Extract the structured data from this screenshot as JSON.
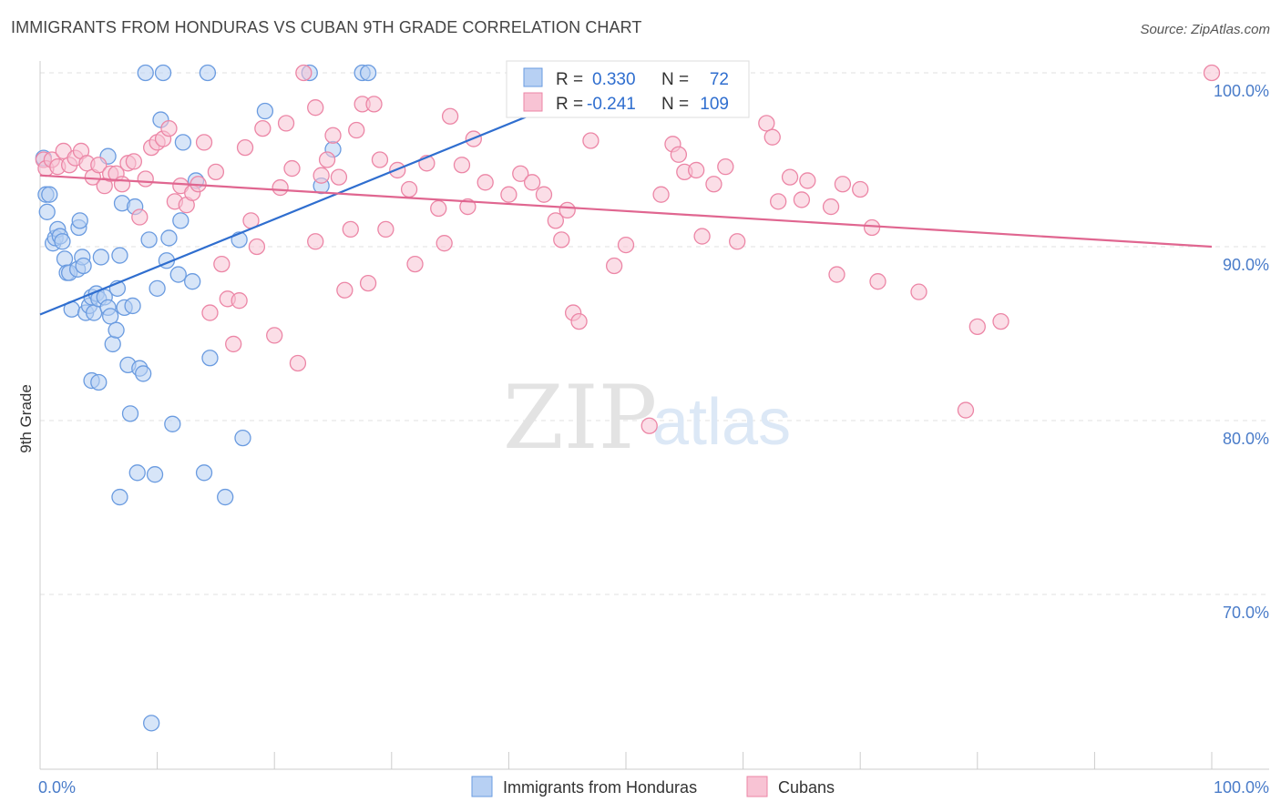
{
  "title": "IMMIGRANTS FROM HONDURAS VS CUBAN 9TH GRADE CORRELATION CHART",
  "source": "Source: ZipAtlas.com",
  "watermark": {
    "zip": "ZIP",
    "atlas": "atlas"
  },
  "colors": {
    "blue": "#6a9be0",
    "blue_fill": "#b7d0f3",
    "blue_line": "#2f6ecf",
    "pink": "#ec86a6",
    "pink_fill": "#f8c3d4",
    "pink_line": "#e06690",
    "tick_text": "#4a7cc9"
  },
  "stats": {
    "r_label": "R =",
    "n_label": "N =",
    "blue": {
      "r": "0.330",
      "n": "72"
    },
    "pink": {
      "r": "-0.241",
      "n": "109"
    }
  },
  "legend": {
    "blue_label": "Immigrants from Honduras",
    "pink_label": "Cubans"
  },
  "chart_data": {
    "type": "scatter",
    "title": "IMMIGRANTS FROM HONDURAS VS CUBAN 9TH GRADE CORRELATION CHART",
    "xlabel": "",
    "ylabel": "9th Grade",
    "xlim": [
      0,
      100
    ],
    "ylim": [
      59.5,
      101.5
    ],
    "x_ticks": [
      0,
      10,
      20,
      30,
      40,
      50,
      60,
      70,
      80,
      90,
      100
    ],
    "x_tick_labels": {
      "0": "0.0%",
      "100": "100.0%"
    },
    "y_ticks": [
      100,
      90,
      80,
      70
    ],
    "y_tick_labels": [
      "100.0%",
      "90.0%",
      "80.0%",
      "70.0%"
    ],
    "grid": true,
    "legend_position": "bottom",
    "series": [
      {
        "name": "Immigrants from Honduras",
        "color": "#6a9be0",
        "trend": [
          [
            0,
            86.1
          ],
          [
            50,
            99.8
          ]
        ],
        "points": [
          [
            0.3,
            95.1
          ],
          [
            0.5,
            93.0
          ],
          [
            0.6,
            92.0
          ],
          [
            0.8,
            93.0
          ],
          [
            1.1,
            90.2
          ],
          [
            1.3,
            90.5
          ],
          [
            1.5,
            91.0
          ],
          [
            1.7,
            90.6
          ],
          [
            1.9,
            90.3
          ],
          [
            2.1,
            89.3
          ],
          [
            2.3,
            88.5
          ],
          [
            2.5,
            88.5
          ],
          [
            2.7,
            86.4
          ],
          [
            3.2,
            88.7
          ],
          [
            3.3,
            91.1
          ],
          [
            3.4,
            91.5
          ],
          [
            3.6,
            89.4
          ],
          [
            3.7,
            88.9
          ],
          [
            3.9,
            86.2
          ],
          [
            4.2,
            86.6
          ],
          [
            4.4,
            87.1
          ],
          [
            4.6,
            86.2
          ],
          [
            4.8,
            87.3
          ],
          [
            5.0,
            87.0
          ],
          [
            5.2,
            89.4
          ],
          [
            5.5,
            87.1
          ],
          [
            5.8,
            86.5
          ],
          [
            6.0,
            86.0
          ],
          [
            6.2,
            84.4
          ],
          [
            6.5,
            85.2
          ],
          [
            6.6,
            87.6
          ],
          [
            6.8,
            89.5
          ],
          [
            7.0,
            92.5
          ],
          [
            7.2,
            86.5
          ],
          [
            7.5,
            83.2
          ],
          [
            7.7,
            80.4
          ],
          [
            7.9,
            86.6
          ],
          [
            8.1,
            92.3
          ],
          [
            8.3,
            77.0
          ],
          [
            8.5,
            83.0
          ],
          [
            8.8,
            82.7
          ],
          [
            9.0,
            100.0
          ],
          [
            9.3,
            90.4
          ],
          [
            9.5,
            62.6
          ],
          [
            9.8,
            76.9
          ],
          [
            10.0,
            87.6
          ],
          [
            10.3,
            97.3
          ],
          [
            10.5,
            100.0
          ],
          [
            10.8,
            89.2
          ],
          [
            11.0,
            90.5
          ],
          [
            11.3,
            79.8
          ],
          [
            11.8,
            88.4
          ],
          [
            12.0,
            91.5
          ],
          [
            12.2,
            96.0
          ],
          [
            13.0,
            88.0
          ],
          [
            13.3,
            93.8
          ],
          [
            14.0,
            77.0
          ],
          [
            14.3,
            100.0
          ],
          [
            14.5,
            83.6
          ],
          [
            15.8,
            75.6
          ],
          [
            17.0,
            90.4
          ],
          [
            17.3,
            79.0
          ],
          [
            19.2,
            97.8
          ],
          [
            23.0,
            100.0
          ],
          [
            24.0,
            93.5
          ],
          [
            25.0,
            95.6
          ],
          [
            27.5,
            100.0
          ],
          [
            28.0,
            100.0
          ],
          [
            4.4,
            82.3
          ],
          [
            5.0,
            82.2
          ],
          [
            6.8,
            75.6
          ],
          [
            5.8,
            95.2
          ]
        ]
      },
      {
        "name": "Cubans",
        "color": "#ec86a6",
        "trend": [
          [
            0,
            94.1
          ],
          [
            100,
            90.0
          ]
        ],
        "points": [
          [
            0.3,
            95.0
          ],
          [
            0.5,
            94.5
          ],
          [
            1.0,
            95.0
          ],
          [
            1.5,
            94.6
          ],
          [
            2.0,
            95.5
          ],
          [
            2.5,
            94.7
          ],
          [
            3.0,
            95.1
          ],
          [
            3.5,
            95.5
          ],
          [
            4.0,
            94.8
          ],
          [
            4.5,
            94.0
          ],
          [
            5.0,
            94.7
          ],
          [
            5.5,
            93.5
          ],
          [
            6.0,
            94.2
          ],
          [
            6.5,
            94.2
          ],
          [
            7.0,
            93.6
          ],
          [
            7.5,
            94.8
          ],
          [
            8.0,
            94.9
          ],
          [
            8.5,
            91.7
          ],
          [
            9.0,
            93.9
          ],
          [
            9.5,
            95.7
          ],
          [
            10.0,
            96.0
          ],
          [
            10.5,
            96.2
          ],
          [
            11.0,
            96.8
          ],
          [
            11.5,
            92.6
          ],
          [
            12.0,
            93.5
          ],
          [
            12.5,
            92.4
          ],
          [
            13.0,
            93.1
          ],
          [
            13.5,
            93.6
          ],
          [
            14.0,
            96.0
          ],
          [
            14.5,
            86.2
          ],
          [
            15.0,
            94.3
          ],
          [
            15.5,
            89.0
          ],
          [
            16.0,
            87.0
          ],
          [
            16.5,
            84.4
          ],
          [
            17.0,
            86.9
          ],
          [
            17.5,
            95.7
          ],
          [
            18.0,
            91.5
          ],
          [
            18.5,
            90.0
          ],
          [
            19.0,
            96.8
          ],
          [
            20.0,
            84.9
          ],
          [
            20.5,
            93.4
          ],
          [
            21.0,
            97.1
          ],
          [
            21.5,
            94.5
          ],
          [
            22.0,
            83.3
          ],
          [
            22.5,
            100.0
          ],
          [
            23.5,
            90.3
          ],
          [
            24.0,
            94.1
          ],
          [
            24.5,
            95.0
          ],
          [
            25.0,
            96.4
          ],
          [
            25.5,
            94.0
          ],
          [
            26.0,
            87.5
          ],
          [
            26.5,
            91.0
          ],
          [
            27.0,
            96.7
          ],
          [
            27.5,
            98.2
          ],
          [
            28.0,
            87.9
          ],
          [
            29.0,
            95.0
          ],
          [
            29.5,
            91.0
          ],
          [
            30.5,
            94.4
          ],
          [
            31.5,
            93.3
          ],
          [
            32.0,
            89.0
          ],
          [
            33.0,
            94.8
          ],
          [
            34.0,
            92.2
          ],
          [
            34.5,
            90.2
          ],
          [
            35.0,
            97.5
          ],
          [
            36.0,
            94.7
          ],
          [
            36.5,
            92.3
          ],
          [
            37.0,
            96.2
          ],
          [
            38.0,
            93.7
          ],
          [
            40.0,
            93.0
          ],
          [
            41.0,
            94.2
          ],
          [
            42.0,
            93.7
          ],
          [
            43.0,
            93.0
          ],
          [
            44.0,
            91.5
          ],
          [
            44.5,
            90.4
          ],
          [
            45.0,
            92.1
          ],
          [
            45.5,
            86.2
          ],
          [
            46.0,
            85.7
          ],
          [
            47.0,
            96.1
          ],
          [
            49.0,
            88.9
          ],
          [
            50.0,
            90.1
          ],
          [
            52.0,
            79.7
          ],
          [
            53.0,
            93.0
          ],
          [
            54.0,
            95.9
          ],
          [
            54.5,
            95.3
          ],
          [
            55.0,
            94.3
          ],
          [
            56.0,
            94.4
          ],
          [
            56.5,
            90.6
          ],
          [
            57.5,
            93.6
          ],
          [
            58.5,
            94.6
          ],
          [
            59.5,
            90.3
          ],
          [
            62.0,
            97.1
          ],
          [
            62.5,
            96.3
          ],
          [
            63.0,
            92.6
          ],
          [
            64.0,
            94.0
          ],
          [
            65.0,
            92.7
          ],
          [
            65.5,
            93.8
          ],
          [
            67.5,
            92.3
          ],
          [
            68.0,
            88.4
          ],
          [
            68.5,
            93.6
          ],
          [
            70.0,
            93.3
          ],
          [
            71.0,
            91.1
          ],
          [
            71.5,
            88.0
          ],
          [
            75.0,
            87.4
          ],
          [
            79.0,
            80.6
          ],
          [
            80.0,
            85.4
          ],
          [
            82.0,
            85.7
          ],
          [
            100.0,
            100.0
          ],
          [
            28.5,
            98.2
          ],
          [
            23.5,
            98.0
          ]
        ]
      }
    ]
  }
}
